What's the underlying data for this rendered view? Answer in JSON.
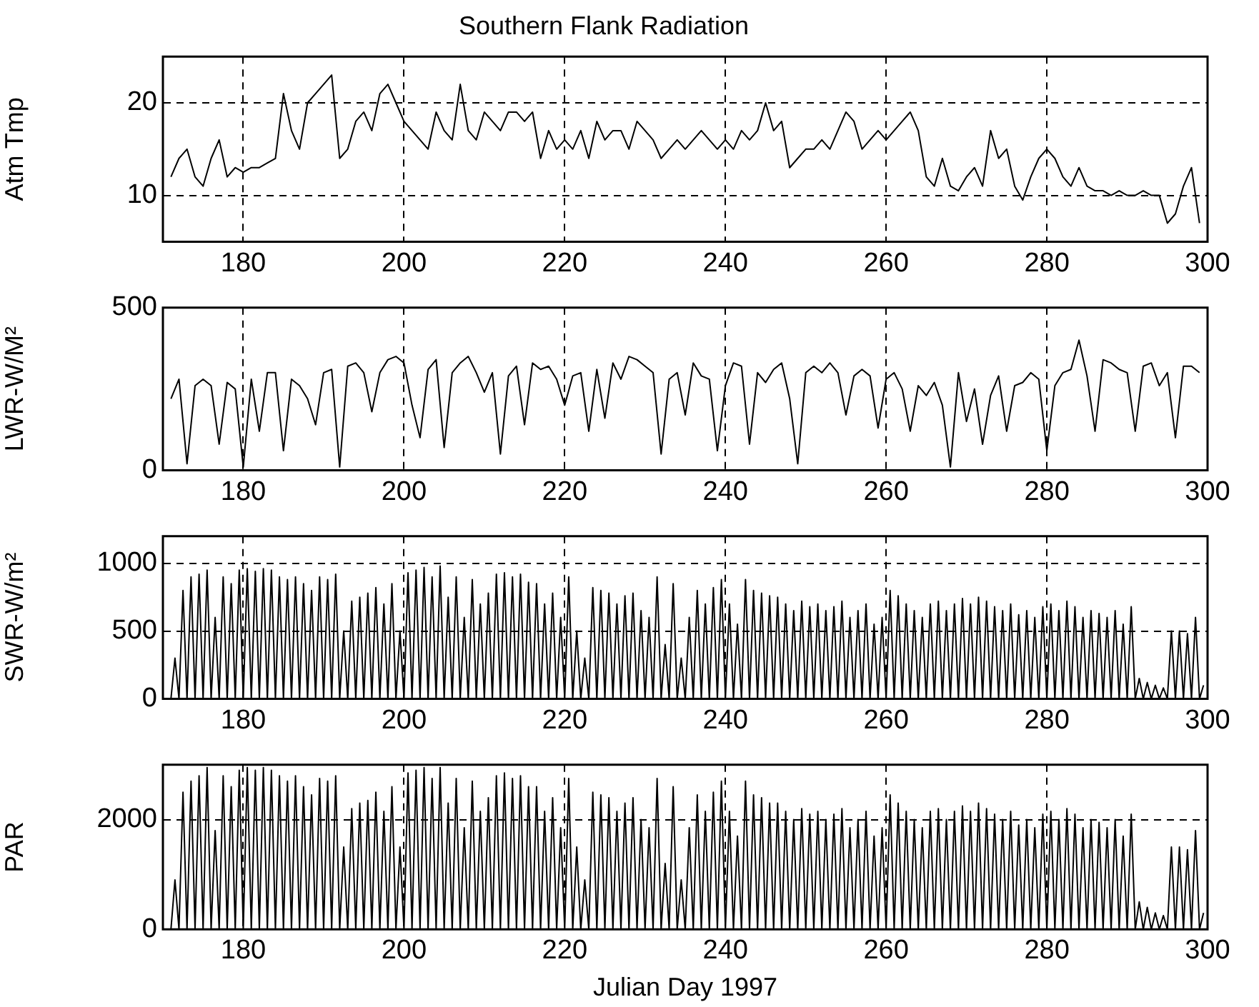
{
  "chart_data": [
    {
      "type": "line",
      "title": "Southern Flank Radiation",
      "ylabel": "Atm Tmp",
      "xlim": [
        170,
        300
      ],
      "xticks": [
        180,
        200,
        220,
        240,
        260,
        280,
        300
      ],
      "ylim": [
        5,
        25
      ],
      "yticks": [
        10,
        20
      ],
      "grid": true,
      "x": [
        171,
        172,
        173,
        174,
        175,
        176,
        177,
        178,
        179,
        180,
        181,
        182,
        183,
        184,
        185,
        186,
        187,
        188,
        189,
        190,
        191,
        192,
        193,
        194,
        195,
        196,
        197,
        198,
        199,
        200,
        201,
        202,
        203,
        204,
        205,
        206,
        207,
        208,
        209,
        210,
        211,
        212,
        213,
        214,
        215,
        216,
        217,
        218,
        219,
        220,
        221,
        222,
        223,
        224,
        225,
        226,
        227,
        228,
        229,
        230,
        231,
        232,
        233,
        234,
        235,
        236,
        237,
        238,
        239,
        240,
        241,
        242,
        243,
        244,
        245,
        246,
        247,
        248,
        249,
        250,
        251,
        252,
        253,
        254,
        255,
        256,
        257,
        258,
        259,
        260,
        261,
        262,
        263,
        264,
        265,
        266,
        267,
        268,
        269,
        270,
        271,
        272,
        273,
        274,
        275,
        276,
        277,
        278,
        279,
        280,
        281,
        282,
        283,
        284,
        285,
        286,
        287,
        288,
        289,
        290,
        291,
        292,
        293,
        294,
        295,
        296,
        297,
        298,
        299
      ],
      "series": [
        {
          "color": "#000000",
          "values": [
            12,
            14,
            15,
            12,
            11,
            14,
            16,
            12,
            13,
            12.5,
            13,
            13,
            13.5,
            14,
            21,
            17,
            15,
            20,
            21,
            22,
            23,
            14,
            15,
            18,
            19,
            17,
            21,
            22,
            20,
            18,
            17,
            16,
            15,
            19,
            17,
            16,
            22,
            17,
            16,
            19,
            18,
            17,
            19,
            19,
            18,
            19,
            14,
            17,
            15,
            16,
            15,
            17,
            14,
            18,
            16,
            17,
            17,
            15,
            18,
            17,
            16,
            14,
            15,
            16,
            15,
            16,
            17,
            16,
            15,
            16,
            15,
            17,
            16,
            17,
            20,
            17,
            18,
            13,
            14,
            15,
            15,
            16,
            15,
            17,
            19,
            18,
            15,
            16,
            17,
            16,
            17,
            18,
            19,
            17,
            12,
            11,
            14,
            11,
            10.5,
            12,
            13,
            11,
            17,
            14,
            15,
            11,
            9.5,
            12,
            14,
            15,
            14,
            12,
            11,
            13,
            11,
            10.5,
            10.5,
            10,
            10.5,
            10,
            10,
            10.5,
            10,
            10,
            7,
            8,
            11,
            13,
            7
          ]
        }
      ]
    },
    {
      "type": "line",
      "ylabel": "LWR-W/M²",
      "xlim": [
        170,
        300
      ],
      "xticks": [
        180,
        200,
        220,
        240,
        260,
        280,
        300
      ],
      "ylim": [
        0,
        500
      ],
      "yticks": [
        0,
        500
      ],
      "grid": true,
      "x": [
        171,
        172,
        173,
        174,
        175,
        176,
        177,
        178,
        179,
        180,
        181,
        182,
        183,
        184,
        185,
        186,
        187,
        188,
        189,
        190,
        191,
        192,
        193,
        194,
        195,
        196,
        197,
        198,
        199,
        200,
        201,
        202,
        203,
        204,
        205,
        206,
        207,
        208,
        209,
        210,
        211,
        212,
        213,
        214,
        215,
        216,
        217,
        218,
        219,
        220,
        221,
        222,
        223,
        224,
        225,
        226,
        227,
        228,
        229,
        230,
        231,
        232,
        233,
        234,
        235,
        236,
        237,
        238,
        239,
        240,
        241,
        242,
        243,
        244,
        245,
        246,
        247,
        248,
        249,
        250,
        251,
        252,
        253,
        254,
        255,
        256,
        257,
        258,
        259,
        260,
        261,
        262,
        263,
        264,
        265,
        266,
        267,
        268,
        269,
        270,
        271,
        272,
        273,
        274,
        275,
        276,
        277,
        278,
        279,
        280,
        281,
        282,
        283,
        284,
        285,
        286,
        287,
        288,
        289,
        290,
        291,
        292,
        293,
        294,
        295,
        296,
        297,
        298,
        299
      ],
      "series": [
        {
          "color": "#000000",
          "values": [
            220,
            280,
            20,
            260,
            280,
            260,
            80,
            270,
            250,
            10,
            280,
            120,
            300,
            300,
            60,
            280,
            260,
            220,
            140,
            300,
            310,
            10,
            320,
            330,
            300,
            180,
            300,
            340,
            350,
            330,
            200,
            100,
            310,
            340,
            70,
            300,
            330,
            350,
            300,
            240,
            300,
            50,
            290,
            320,
            140,
            330,
            310,
            320,
            280,
            200,
            290,
            300,
            120,
            310,
            160,
            330,
            280,
            350,
            340,
            320,
            300,
            50,
            280,
            300,
            170,
            330,
            290,
            280,
            60,
            260,
            330,
            320,
            80,
            300,
            270,
            310,
            330,
            220,
            20,
            300,
            320,
            300,
            330,
            300,
            170,
            290,
            310,
            290,
            130,
            280,
            300,
            250,
            120,
            260,
            230,
            270,
            200,
            10,
            300,
            150,
            250,
            80,
            230,
            290,
            120,
            260,
            270,
            300,
            280,
            60,
            260,
            300,
            310,
            400,
            290,
            120,
            340,
            330,
            310,
            300,
            120,
            320,
            330,
            260,
            300,
            100,
            320,
            320,
            300
          ]
        }
      ]
    },
    {
      "type": "line",
      "ylabel": "SWR-W/m²",
      "xlim": [
        170,
        300
      ],
      "xticks": [
        180,
        200,
        220,
        240,
        260,
        280,
        300
      ],
      "ylim": [
        0,
        1200
      ],
      "yticks": [
        0,
        500,
        1000
      ],
      "grid": true,
      "x": [
        171,
        171.5,
        172,
        172.5,
        173,
        173.5,
        174,
        174.5,
        175,
        175.5,
        176,
        176.5,
        177,
        177.5,
        178,
        178.5,
        179,
        179.5,
        180,
        180.5,
        181,
        181.5,
        182,
        182.5,
        183,
        183.5,
        184,
        184.5,
        185,
        185.5,
        186,
        186.5,
        187,
        187.5,
        188,
        188.5,
        189,
        189.5,
        190,
        190.5,
        191,
        191.5,
        192,
        192.5,
        193,
        193.5,
        194,
        194.5,
        195,
        195.5,
        196,
        196.5,
        197,
        197.5,
        198,
        198.5,
        199,
        199.5,
        200,
        200.5,
        201,
        201.5,
        202,
        202.5,
        203,
        203.5,
        204,
        204.5,
        205,
        205.5,
        206,
        206.5,
        207,
        207.5,
        208,
        208.5,
        209,
        209.5,
        210,
        210.5,
        211,
        211.5,
        212,
        212.5,
        213,
        213.5,
        214,
        214.5,
        215,
        215.5,
        216,
        216.5,
        217,
        217.5,
        218,
        218.5,
        219,
        219.5,
        220,
        220.5,
        221,
        221.5,
        222,
        222.5,
        223,
        223.5,
        224,
        224.5,
        225,
        225.5,
        226,
        226.5,
        227,
        227.5,
        228,
        228.5,
        229,
        229.5,
        230,
        230.5,
        231,
        231.5,
        232,
        232.5,
        233,
        233.5,
        234,
        234.5,
        235,
        235.5,
        236,
        236.5,
        237,
        237.5,
        238,
        238.5,
        239,
        239.5,
        240,
        240.5,
        241,
        241.5,
        242,
        242.5,
        243,
        243.5,
        244,
        244.5,
        245,
        245.5,
        246,
        246.5,
        247,
        247.5,
        248,
        248.5,
        249,
        249.5,
        250,
        250.5,
        251,
        251.5,
        252,
        252.5,
        253,
        253.5,
        254,
        254.5,
        255,
        255.5,
        256,
        256.5,
        257,
        257.5,
        258,
        258.5,
        259,
        259.5,
        260,
        260.5,
        261,
        261.5,
        262,
        262.5,
        263,
        263.5,
        264,
        264.5,
        265,
        265.5,
        266,
        266.5,
        267,
        267.5,
        268,
        268.5,
        269,
        269.5,
        270,
        270.5,
        271,
        271.5,
        272,
        272.5,
        273,
        273.5,
        274,
        274.5,
        275,
        275.5,
        276,
        276.5,
        277,
        277.5,
        278,
        278.5,
        279,
        279.5,
        280,
        280.5,
        281,
        281.5,
        282,
        282.5,
        283,
        283.5,
        284,
        284.5,
        285,
        285.5,
        286,
        286.5,
        287,
        287.5,
        288,
        288.5,
        289,
        289.5,
        290,
        290.5,
        291,
        291.5,
        292,
        292.5,
        293,
        293.5,
        294,
        294.5,
        295,
        295.5,
        296,
        296.5,
        297,
        297.5,
        298,
        298.5,
        299,
        299.5
      ],
      "series": [
        {
          "color": "#000000",
          "values": [
            0,
            300,
            0,
            800,
            0,
            900,
            0,
            920,
            0,
            950,
            0,
            600,
            0,
            900,
            0,
            850,
            0,
            950,
            0,
            960,
            0,
            940,
            0,
            960,
            0,
            950,
            0,
            900,
            0,
            880,
            0,
            900,
            0,
            850,
            0,
            800,
            0,
            900,
            0,
            880,
            0,
            920,
            0,
            500,
            0,
            720,
            0,
            750,
            0,
            780,
            0,
            820,
            0,
            700,
            0,
            850,
            0,
            500,
            0,
            930,
            0,
            950,
            0,
            970,
            0,
            900,
            0,
            980,
            0,
            750,
            0,
            900,
            0,
            600,
            0,
            880,
            0,
            700,
            0,
            780,
            0,
            920,
            0,
            930,
            0,
            900,
            0,
            920,
            0,
            860,
            0,
            850,
            0,
            700,
            0,
            780,
            0,
            600,
            0,
            900,
            0,
            500,
            0,
            300,
            0,
            820,
            0,
            800,
            0,
            780,
            0,
            700,
            0,
            760,
            0,
            780,
            0,
            650,
            0,
            600,
            0,
            900,
            0,
            400,
            0,
            850,
            0,
            300,
            0,
            600,
            0,
            800,
            0,
            700,
            0,
            820,
            0,
            880,
            0,
            700,
            0,
            550,
            0,
            880,
            0,
            800,
            0,
            780,
            0,
            760,
            0,
            750,
            0,
            700,
            0,
            650,
            0,
            720,
            0,
            680,
            0,
            700,
            0,
            650,
            0,
            680,
            0,
            720,
            0,
            600,
            0,
            650,
            0,
            700,
            0,
            550,
            0,
            600,
            0,
            800,
            0,
            760,
            0,
            700,
            0,
            650,
            0,
            600,
            0,
            700,
            0,
            720,
            0,
            650,
            0,
            700,
            0,
            740,
            0,
            700,
            0,
            750,
            0,
            720,
            0,
            680,
            0,
            650,
            0,
            700,
            0,
            620,
            0,
            650,
            0,
            600,
            0,
            680,
            0,
            700,
            0,
            650,
            0,
            720,
            0,
            680,
            0,
            600,
            0,
            650,
            0,
            630,
            0,
            600,
            0,
            650,
            0,
            550,
            0,
            680,
            0,
            150,
            0,
            120,
            0,
            100,
            0,
            80,
            0,
            500,
            0,
            500,
            0,
            480,
            0,
            600,
            0,
            100
          ]
        }
      ]
    },
    {
      "type": "line",
      "ylabel": "PAR",
      "xlabel": "Julian Day 1997",
      "xlim": [
        170,
        300
      ],
      "xticks": [
        180,
        200,
        220,
        240,
        260,
        280,
        300
      ],
      "ylim": [
        0,
        3000
      ],
      "yticks": [
        0,
        2000
      ],
      "grid": true,
      "x": [
        171,
        171.5,
        172,
        172.5,
        173,
        173.5,
        174,
        174.5,
        175,
        175.5,
        176,
        176.5,
        177,
        177.5,
        178,
        178.5,
        179,
        179.5,
        180,
        180.5,
        181,
        181.5,
        182,
        182.5,
        183,
        183.5,
        184,
        184.5,
        185,
        185.5,
        186,
        186.5,
        187,
        187.5,
        188,
        188.5,
        189,
        189.5,
        190,
        190.5,
        191,
        191.5,
        192,
        192.5,
        193,
        193.5,
        194,
        194.5,
        195,
        195.5,
        196,
        196.5,
        197,
        197.5,
        198,
        198.5,
        199,
        199.5,
        200,
        200.5,
        201,
        201.5,
        202,
        202.5,
        203,
        203.5,
        204,
        204.5,
        205,
        205.5,
        206,
        206.5,
        207,
        207.5,
        208,
        208.5,
        209,
        209.5,
        210,
        210.5,
        211,
        211.5,
        212,
        212.5,
        213,
        213.5,
        214,
        214.5,
        215,
        215.5,
        216,
        216.5,
        217,
        217.5,
        218,
        218.5,
        219,
        219.5,
        220,
        220.5,
        221,
        221.5,
        222,
        222.5,
        223,
        223.5,
        224,
        224.5,
        225,
        225.5,
        226,
        226.5,
        227,
        227.5,
        228,
        228.5,
        229,
        229.5,
        230,
        230.5,
        231,
        231.5,
        232,
        232.5,
        233,
        233.5,
        234,
        234.5,
        235,
        235.5,
        236,
        236.5,
        237,
        237.5,
        238,
        238.5,
        239,
        239.5,
        240,
        240.5,
        241,
        241.5,
        242,
        242.5,
        243,
        243.5,
        244,
        244.5,
        245,
        245.5,
        246,
        246.5,
        247,
        247.5,
        248,
        248.5,
        249,
        249.5,
        250,
        250.5,
        251,
        251.5,
        252,
        252.5,
        253,
        253.5,
        254,
        254.5,
        255,
        255.5,
        256,
        256.5,
        257,
        257.5,
        258,
        258.5,
        259,
        259.5,
        260,
        260.5,
        261,
        261.5,
        262,
        262.5,
        263,
        263.5,
        264,
        264.5,
        265,
        265.5,
        266,
        266.5,
        267,
        267.5,
        268,
        268.5,
        269,
        269.5,
        270,
        270.5,
        271,
        271.5,
        272,
        272.5,
        273,
        273.5,
        274,
        274.5,
        275,
        275.5,
        276,
        276.5,
        277,
        277.5,
        278,
        278.5,
        279,
        279.5,
        280,
        280.5,
        281,
        281.5,
        282,
        282.5,
        283,
        283.5,
        284,
        284.5,
        285,
        285.5,
        286,
        286.5,
        287,
        287.5,
        288,
        288.5,
        289,
        289.5,
        290,
        290.5,
        291,
        291.5,
        292,
        292.5,
        293,
        293.5,
        294,
        294.5,
        295,
        295.5,
        296,
        296.5,
        297,
        297.5,
        298,
        298.5,
        299,
        299.5
      ],
      "series": [
        {
          "color": "#000000",
          "values": [
            0,
            900,
            0,
            2500,
            0,
            2700,
            0,
            2800,
            0,
            2950,
            0,
            1800,
            0,
            2800,
            0,
            2600,
            0,
            2900,
            0,
            2950,
            0,
            2900,
            0,
            2950,
            0,
            2900,
            0,
            2800,
            0,
            2700,
            0,
            2800,
            0,
            2600,
            0,
            2450,
            0,
            2750,
            0,
            2700,
            0,
            2800,
            0,
            1500,
            0,
            2200,
            0,
            2300,
            0,
            2350,
            0,
            2500,
            0,
            2150,
            0,
            2600,
            0,
            1500,
            0,
            2850,
            0,
            2900,
            0,
            2950,
            0,
            2750,
            0,
            2950,
            0,
            2300,
            0,
            2750,
            0,
            1850,
            0,
            2700,
            0,
            2150,
            0,
            2400,
            0,
            2800,
            0,
            2850,
            0,
            2750,
            0,
            2800,
            0,
            2600,
            0,
            2600,
            0,
            2150,
            0,
            2400,
            0,
            1850,
            0,
            2750,
            0,
            1500,
            0,
            900,
            0,
            2500,
            0,
            2450,
            0,
            2400,
            0,
            2150,
            0,
            2300,
            0,
            2400,
            0,
            2000,
            0,
            1850,
            0,
            2750,
            0,
            1200,
            0,
            2600,
            0,
            900,
            0,
            1850,
            0,
            2450,
            0,
            2150,
            0,
            2500,
            0,
            2700,
            0,
            2150,
            0,
            1700,
            0,
            2700,
            0,
            2450,
            0,
            2400,
            0,
            2300,
            0,
            2300,
            0,
            2150,
            0,
            2000,
            0,
            2200,
            0,
            2100,
            0,
            2150,
            0,
            2000,
            0,
            2100,
            0,
            2200,
            0,
            1850,
            0,
            2000,
            0,
            2150,
            0,
            1700,
            0,
            1850,
            0,
            2450,
            0,
            2300,
            0,
            2150,
            0,
            2000,
            0,
            1850,
            0,
            2150,
            0,
            2200,
            0,
            2000,
            0,
            2150,
            0,
            2250,
            0,
            2150,
            0,
            2300,
            0,
            2200,
            0,
            2100,
            0,
            2000,
            0,
            2150,
            0,
            1900,
            0,
            2000,
            0,
            1850,
            0,
            2100,
            0,
            2150,
            0,
            2000,
            0,
            2200,
            0,
            2100,
            0,
            1850,
            0,
            2000,
            0,
            1950,
            0,
            1850,
            0,
            2000,
            0,
            1700,
            0,
            2100,
            0,
            500,
            0,
            400,
            0,
            300,
            0,
            250,
            0,
            1500,
            0,
            1500,
            0,
            1450,
            0,
            1800,
            0,
            300
          ]
        }
      ]
    }
  ]
}
